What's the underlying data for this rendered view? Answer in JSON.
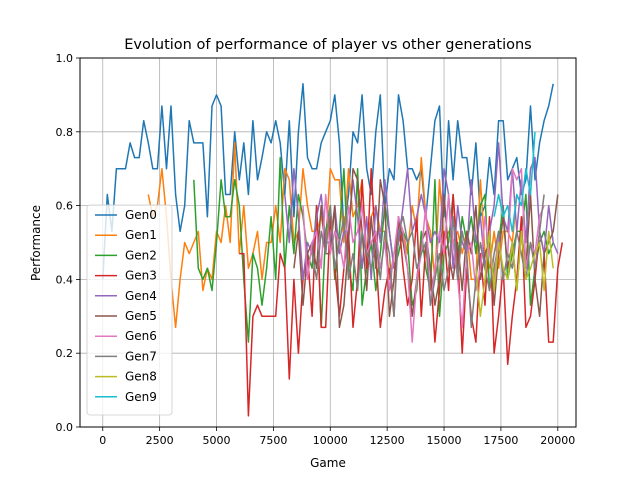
{
  "chart_data": {
    "type": "line",
    "title": "Evolution of performance of player vs other generations",
    "xlabel": "Game",
    "ylabel": "Performance",
    "xlim": [
      -1000,
      20800
    ],
    "ylim": [
      0.0,
      1.0
    ],
    "xticks": [
      0,
      2500,
      5000,
      7500,
      10000,
      12500,
      15000,
      17500,
      20000
    ],
    "yticks": [
      0.0,
      0.2,
      0.4,
      0.6,
      0.8,
      1.0
    ],
    "grid": true,
    "legend_position": "center-left",
    "series": [
      {
        "name": "Gen0",
        "color": "#1f77b4",
        "start": 0,
        "values": [
          0.4,
          0.63,
          0.53,
          0.7,
          0.7,
          0.7,
          0.77,
          0.73,
          0.73,
          0.83,
          0.77,
          0.7,
          0.7,
          0.87,
          0.7,
          0.87,
          0.63,
          0.53,
          0.6,
          0.83,
          0.77,
          0.77,
          0.77,
          0.57,
          0.87,
          0.9,
          0.87,
          0.63,
          0.63,
          0.8,
          0.67,
          0.77,
          0.63,
          0.83,
          0.67,
          0.73,
          0.8,
          0.77,
          0.83,
          0.77,
          0.63,
          0.83,
          0.57,
          0.8,
          0.93,
          0.73,
          0.7,
          0.7,
          0.77,
          0.8,
          0.83,
          0.9,
          0.77,
          0.53,
          0.63,
          0.8,
          0.77,
          0.9,
          0.7,
          0.63,
          0.8,
          0.9,
          0.6,
          0.7,
          0.67,
          0.9,
          0.83,
          0.7,
          0.7,
          0.67,
          0.7,
          0.57,
          0.7,
          0.83,
          0.87,
          0.57,
          0.83,
          0.67,
          0.83,
          0.73,
          0.73,
          0.63,
          0.77,
          0.57,
          0.6,
          0.73,
          0.63,
          0.83,
          0.83,
          0.67,
          0.7,
          0.73,
          0.63,
          0.67,
          0.87,
          0.67,
          0.77,
          0.83,
          0.87,
          0.93
        ]
      },
      {
        "name": "Gen1",
        "color": "#ff7f0e",
        "start": 2000,
        "values": [
          0.63,
          0.57,
          0.6,
          0.7,
          0.57,
          0.4,
          0.27,
          0.4,
          0.5,
          0.47,
          0.5,
          0.53,
          0.37,
          0.43,
          0.4,
          0.53,
          0.5,
          0.6,
          0.5,
          0.77,
          0.47,
          0.6,
          0.43,
          0.47,
          0.53,
          0.4,
          0.5,
          0.5,
          0.6,
          0.5,
          0.7,
          0.67,
          0.5,
          0.53,
          0.7,
          0.6,
          0.53,
          0.53,
          0.57,
          0.5,
          0.7,
          0.67,
          0.67,
          0.5,
          0.7,
          0.57,
          0.6,
          0.67,
          0.47,
          0.57,
          0.6,
          0.53,
          0.53,
          0.4,
          0.47,
          0.5,
          0.53,
          0.47,
          0.6,
          0.53,
          0.73,
          0.57,
          0.53,
          0.4,
          0.67,
          0.5,
          0.53,
          0.5,
          0.53,
          0.47,
          0.53,
          0.4,
          0.4,
          0.67,
          0.47,
          0.43,
          0.53,
          0.43,
          0.53,
          0.53,
          0.5,
          0.63
        ]
      },
      {
        "name": "Gen2",
        "color": "#2ca02c",
        "start": 4000,
        "values": [
          0.67,
          0.43,
          0.4,
          0.43,
          0.37,
          0.5,
          0.67,
          0.57,
          0.57,
          0.67,
          0.6,
          0.4,
          0.23,
          0.47,
          0.43,
          0.33,
          0.43,
          0.57,
          0.4,
          0.73,
          0.43,
          0.6,
          0.47,
          0.63,
          0.57,
          0.47,
          0.43,
          0.6,
          0.27,
          0.53,
          0.6,
          0.4,
          0.53,
          0.7,
          0.43,
          0.37,
          0.7,
          0.33,
          0.43,
          0.5,
          0.37,
          0.47,
          0.6,
          0.53,
          0.43,
          0.47,
          0.53,
          0.5,
          0.33,
          0.37,
          0.53,
          0.43,
          0.37,
          0.67,
          0.3,
          0.47,
          0.5,
          0.63,
          0.43,
          0.57,
          0.5,
          0.57,
          0.47,
          0.6,
          0.63,
          0.37,
          0.43,
          0.5,
          0.6,
          0.4,
          0.47,
          0.53,
          0.53,
          0.63,
          0.33,
          0.43,
          0.5,
          0.53,
          0.47,
          0.5
        ]
      },
      {
        "name": "Gen3",
        "color": "#d62728",
        "start": 6000,
        "values": [
          0.47,
          0.47,
          0.03,
          0.3,
          0.33,
          0.3,
          0.3,
          0.3,
          0.3,
          0.47,
          0.43,
          0.13,
          0.4,
          0.2,
          0.4,
          0.47,
          0.3,
          0.6,
          0.27,
          0.27,
          0.57,
          0.43,
          0.3,
          0.43,
          0.53,
          0.27,
          0.4,
          0.67,
          0.43,
          0.7,
          0.47,
          0.27,
          0.37,
          0.43,
          0.3,
          0.57,
          0.43,
          0.33,
          0.4,
          0.57,
          0.3,
          0.5,
          0.43,
          0.23,
          0.37,
          0.53,
          0.37,
          0.63,
          0.47,
          0.2,
          0.43,
          0.3,
          0.23,
          0.47,
          0.33,
          0.57,
          0.2,
          0.3,
          0.43,
          0.17,
          0.3,
          0.4,
          0.57,
          0.27,
          0.3,
          0.4,
          0.53,
          0.47,
          0.23,
          0.23,
          0.43,
          0.5
        ]
      },
      {
        "name": "Gen4",
        "color": "#9467bd",
        "start": 8000,
        "values": [
          0.63,
          0.5,
          0.7,
          0.57,
          0.4,
          0.5,
          0.47,
          0.57,
          0.63,
          0.5,
          0.5,
          0.6,
          0.47,
          0.53,
          0.53,
          0.67,
          0.57,
          0.43,
          0.57,
          0.4,
          0.6,
          0.5,
          0.67,
          0.53,
          0.43,
          0.5,
          0.6,
          0.7,
          0.53,
          0.57,
          0.63,
          0.57,
          0.5,
          0.53,
          0.5,
          0.7,
          0.63,
          0.43,
          0.6,
          0.5,
          0.47,
          0.67,
          0.5,
          0.57,
          0.43,
          0.53,
          0.6,
          0.77,
          0.57,
          0.53,
          0.7,
          0.53,
          0.67,
          0.5,
          0.7,
          0.73,
          0.53,
          0.47,
          0.6,
          0.5,
          0.47
        ]
      },
      {
        "name": "Gen5",
        "color": "#8c564b",
        "start": 8400,
        "values": [
          0.43,
          0.53,
          0.33,
          0.47,
          0.5,
          0.43,
          0.6,
          0.47,
          0.47,
          0.6,
          0.27,
          0.33,
          0.5,
          0.7,
          0.67,
          0.53,
          0.37,
          0.57,
          0.43,
          0.67,
          0.6,
          0.3,
          0.4,
          0.57,
          0.5,
          0.43,
          0.3,
          0.4,
          0.5,
          0.53,
          0.43,
          0.33,
          0.4,
          0.63,
          0.47,
          0.4,
          0.5,
          0.37,
          0.53,
          0.47,
          0.6,
          0.4,
          0.47,
          0.5,
          0.33,
          0.47,
          0.57,
          0.43,
          0.5,
          0.37,
          0.53,
          0.43,
          0.63,
          0.4,
          0.3,
          0.47,
          0.5,
          0.53,
          0.63
        ]
      },
      {
        "name": "Gen6",
        "color": "#e377c2",
        "start": 8800,
        "values": [
          0.6,
          0.4,
          0.5,
          0.53,
          0.43,
          0.63,
          0.47,
          0.53,
          0.5,
          0.43,
          0.6,
          0.5,
          0.53,
          0.6,
          0.47,
          0.5,
          0.53,
          0.43,
          0.5,
          0.37,
          0.47,
          0.57,
          0.53,
          0.43,
          0.23,
          0.4,
          0.47,
          0.6,
          0.33,
          0.43,
          0.53,
          0.47,
          0.63,
          0.5,
          0.4,
          0.27,
          0.47,
          0.5,
          0.37,
          0.43,
          0.57,
          0.47,
          0.4,
          0.53,
          0.4,
          0.47,
          0.7,
          0.67,
          0.7,
          0.43,
          0.5,
          0.47,
          0.57,
          0.6
        ]
      },
      {
        "name": "Gen7",
        "color": "#7f7f7f",
        "start": 9200,
        "values": [
          0.47,
          0.4,
          0.53,
          0.47,
          0.6,
          0.43,
          0.5,
          0.57,
          0.4,
          0.47,
          0.37,
          0.53,
          0.47,
          0.43,
          0.5,
          0.4,
          0.53,
          0.47,
          0.3,
          0.53,
          0.57,
          0.5,
          0.53,
          0.43,
          0.47,
          0.5,
          0.33,
          0.4,
          0.47,
          0.37,
          0.43,
          0.57,
          0.4,
          0.53,
          0.47,
          0.27,
          0.4,
          0.5,
          0.43,
          0.37,
          0.47,
          0.53,
          0.4,
          0.47,
          0.43,
          0.53,
          0.47,
          0.4,
          0.5,
          0.43,
          0.53,
          0.63
        ]
      },
      {
        "name": "Gen8",
        "color": "#bcbd22",
        "start": 16400,
        "values": [
          0.43,
          0.3,
          0.4,
          0.53,
          0.37,
          0.5,
          0.43,
          0.4,
          0.5,
          0.37,
          0.53,
          0.4,
          0.43,
          0.47,
          0.5,
          0.37,
          0.53,
          0.43
        ]
      },
      {
        "name": "Gen9",
        "color": "#17becf",
        "start": 17200,
        "values": [
          0.57,
          0.63,
          0.57,
          0.6,
          0.53,
          0.63,
          0.6,
          0.7,
          0.63,
          0.8
        ]
      }
    ],
    "step": 200
  }
}
